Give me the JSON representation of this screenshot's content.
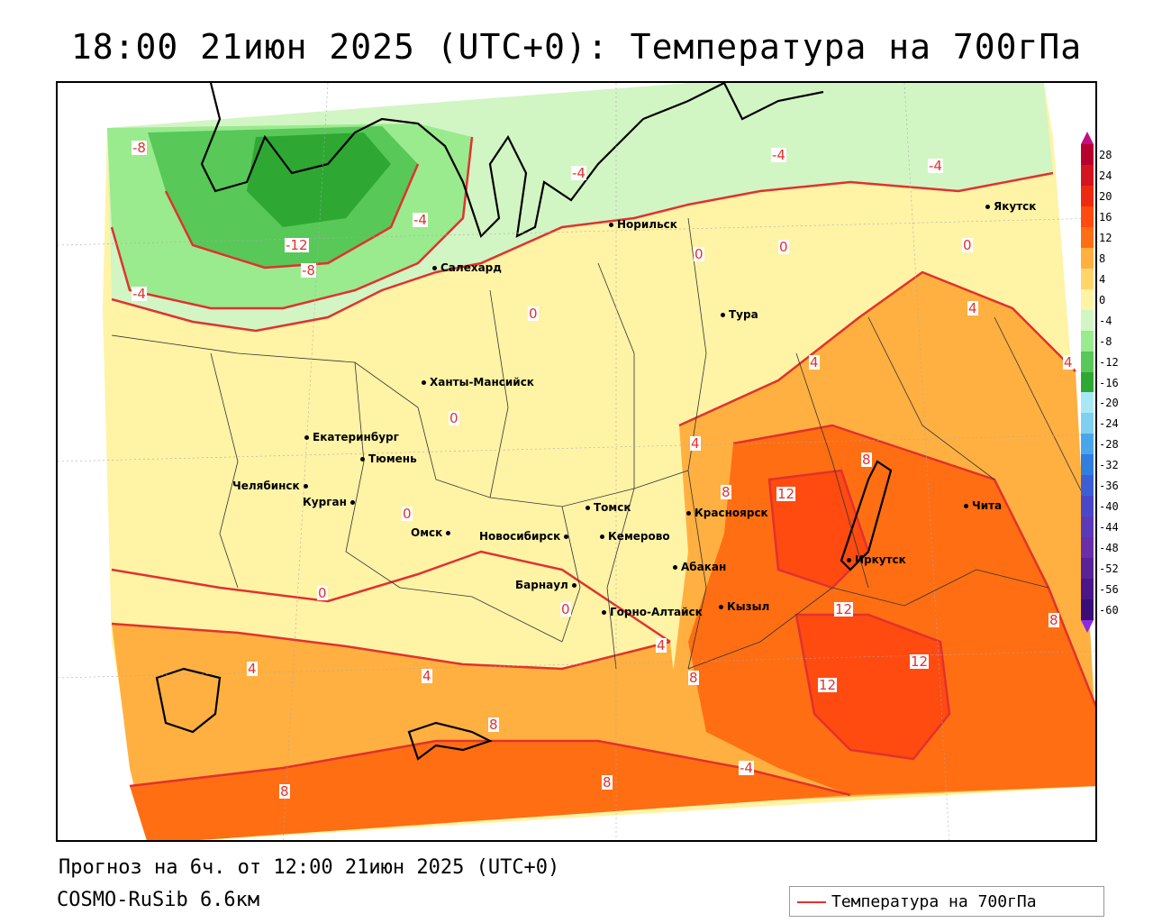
{
  "header": {
    "title": "18:00 21июн 2025 (UTC+0): Температура на 700гПа"
  },
  "footer": {
    "forecast": "Прогноз на 6ч. от 12:00 21июн 2025 (UTC+0)",
    "model": "COSMO-RuSib 6.6км"
  },
  "legend": {
    "label": "Температура на 700гПа",
    "line_color": "#e0322f"
  },
  "colorbar": {
    "ticks": [
      "28",
      "24",
      "20",
      "16",
      "12",
      "8",
      "4",
      "0",
      "-4",
      "-8",
      "-12",
      "-16",
      "-20",
      "-24",
      "-28",
      "-32",
      "-36",
      "-40",
      "-44",
      "-48",
      "-52",
      "-56",
      "-60"
    ],
    "colors": [
      "#b8002e",
      "#d4141e",
      "#ee2a10",
      "#ff4a10",
      "#ff6e12",
      "#ffb040",
      "#ffd56a",
      "#fff3a6",
      "#d2f5c4",
      "#9aea8e",
      "#58c858",
      "#2ea832",
      "#a8e8f4",
      "#7fd0f0",
      "#4aa6ea",
      "#2f7ee0",
      "#3c5fd6",
      "#4a48c8",
      "#5a3ab8",
      "#6a2ea8",
      "#5a2298",
      "#4a1688",
      "#3a0c78"
    ]
  },
  "cities": [
    {
      "name": "Норильск"
    },
    {
      "name": "Якутск"
    },
    {
      "name": "Салехард"
    },
    {
      "name": "Тура"
    },
    {
      "name": "Ханты-Мансийск"
    },
    {
      "name": "Екатеринбург"
    },
    {
      "name": "Тюмень"
    },
    {
      "name": "Челябинск"
    },
    {
      "name": "Курган"
    },
    {
      "name": "Омск"
    },
    {
      "name": "Новосибирск"
    },
    {
      "name": "Томск"
    },
    {
      "name": "Кемерово"
    },
    {
      "name": "Красноярск"
    },
    {
      "name": "Абакан"
    },
    {
      "name": "Барнаул"
    },
    {
      "name": "Горно-Алтайск"
    },
    {
      "name": "Кызыл"
    },
    {
      "name": "Иркутск"
    },
    {
      "name": "Чита"
    }
  ],
  "contour_labels": [
    "-8",
    "-4",
    "-4",
    "-4",
    "-4",
    "-12",
    "-8",
    "-4",
    "0",
    "0",
    "0",
    "0",
    "0",
    "0",
    "0",
    "0",
    "4",
    "4",
    "4",
    "4",
    "4",
    "4",
    "4",
    "8",
    "8",
    "8",
    "8",
    "8",
    "8",
    "8",
    "12",
    "12",
    "12",
    "12",
    "-4"
  ]
}
